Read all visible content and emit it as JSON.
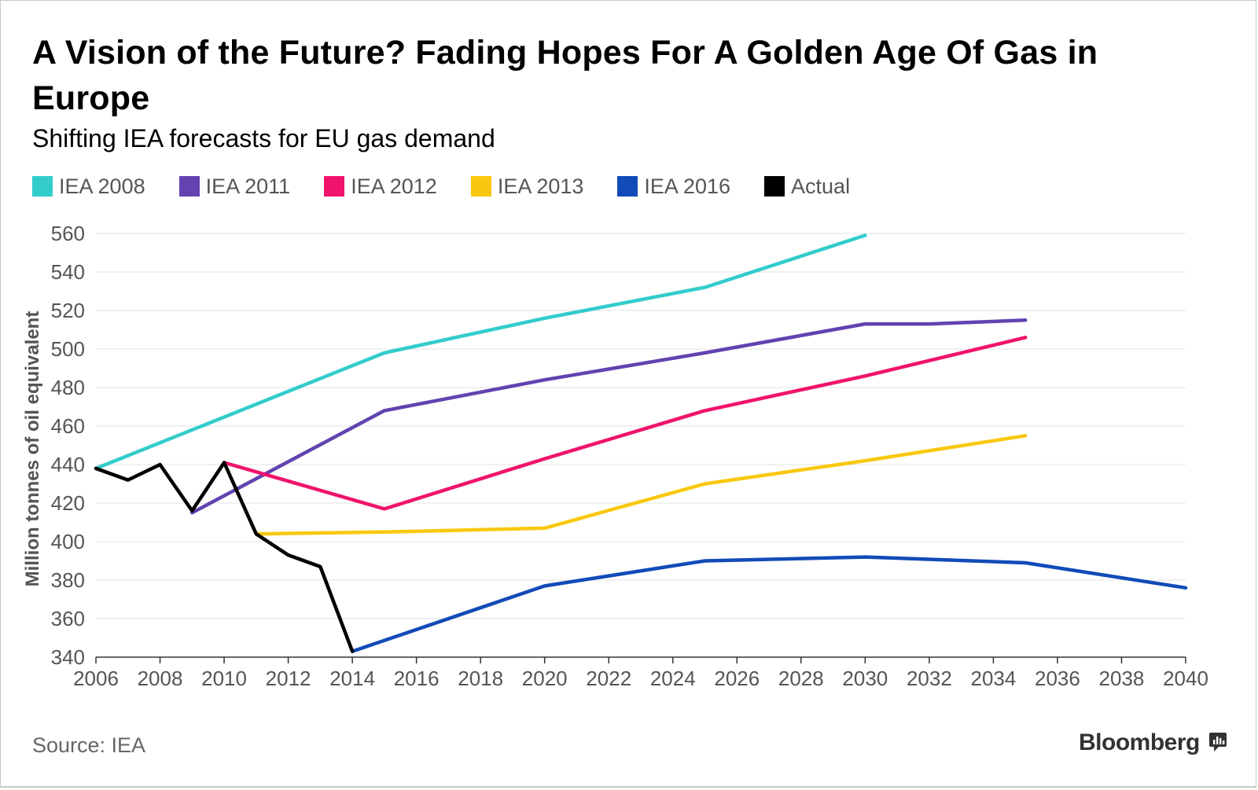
{
  "chart_data": {
    "type": "line",
    "title": "A Vision of the Future? Fading Hopes For A Golden Age Of Gas in Europe",
    "subtitle": "Shifting IEA forecasts for EU gas demand",
    "ylabel": "Million tonnes of oil equivalent",
    "xlabel": "",
    "xlim": [
      2006,
      2040
    ],
    "ylim": [
      340,
      560
    ],
    "x_ticks": [
      "2006",
      "2008",
      "2010",
      "2012",
      "2014",
      "2016",
      "2018",
      "2020",
      "2022",
      "2024",
      "2026",
      "2028",
      "2030",
      "2032",
      "2034",
      "2036",
      "2038",
      "2040"
    ],
    "y_ticks": [
      "340",
      "360",
      "380",
      "400",
      "420",
      "440",
      "460",
      "480",
      "500",
      "520",
      "540",
      "560"
    ],
    "grid": true,
    "legend_position": "top-left",
    "series": [
      {
        "name": "IEA 2008",
        "color": "#33cccc",
        "x": [
          2006,
          2015,
          2020,
          2025,
          2030
        ],
        "y": [
          438,
          498,
          516,
          532,
          559
        ]
      },
      {
        "name": "IEA 2011",
        "color": "#6243b0",
        "x": [
          2009,
          2015,
          2020,
          2025,
          2030,
          2032,
          2035
        ],
        "y": [
          415,
          468,
          484,
          498,
          513,
          513,
          515
        ]
      },
      {
        "name": "IEA 2012",
        "color": "#f0136b",
        "x": [
          2010,
          2015,
          2020,
          2025,
          2030,
          2035
        ],
        "y": [
          441,
          417,
          443,
          468,
          486,
          506
        ]
      },
      {
        "name": "IEA 2013",
        "color": "#f9c80e",
        "x": [
          2011,
          2015,
          2020,
          2025,
          2030,
          2035
        ],
        "y": [
          404,
          405,
          407,
          430,
          442,
          455
        ]
      },
      {
        "name": "IEA 2016",
        "color": "#124bb8",
        "x": [
          2014,
          2020,
          2025,
          2030,
          2035,
          2040
        ],
        "y": [
          343,
          377,
          390,
          392,
          389,
          376
        ]
      },
      {
        "name": "Actual",
        "color": "#000000",
        "x": [
          2006,
          2007,
          2008,
          2009,
          2010,
          2011,
          2012,
          2013,
          2014
        ],
        "y": [
          438,
          432,
          440,
          416,
          441,
          404,
          393,
          387,
          343
        ]
      }
    ]
  },
  "footer": {
    "source": "Source: IEA",
    "brand": "Bloomberg"
  }
}
